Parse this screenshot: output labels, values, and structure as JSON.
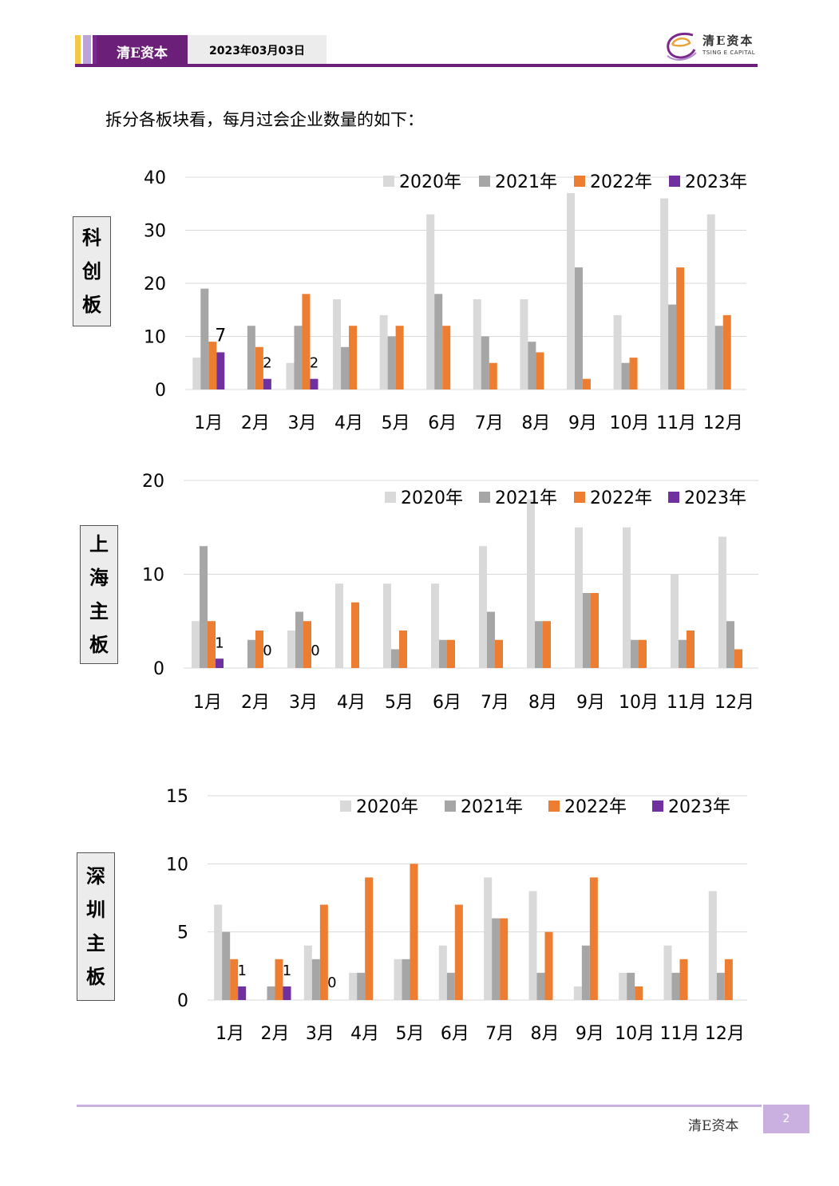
{
  "header": {
    "brand": "清E资本",
    "date": "2023年03月03日"
  },
  "logo": {
    "text_cn": "清E资本",
    "text_en": "TSING E CAPITAL",
    "icon": "swirl-logo-icon"
  },
  "intro": "拆分各板块看，每月过会企业数量的如下：",
  "colors": {
    "2020": "#d9d9d9",
    "2021": "#a6a6a6",
    "2022": "#ed7d31",
    "2023": "#7030a0",
    "brand": "#6b1f78"
  },
  "chart_data": [
    {
      "type": "bar",
      "board": "科创板",
      "categories": [
        "1月",
        "2月",
        "3月",
        "4月",
        "5月",
        "6月",
        "7月",
        "8月",
        "9月",
        "10月",
        "11月",
        "12月"
      ],
      "ylim": [
        0,
        40
      ],
      "yticks": [
        0,
        10,
        20,
        30,
        40
      ],
      "legend": "top-right",
      "grid": true,
      "series": [
        {
          "name": "2020年",
          "values": [
            6,
            0,
            5,
            17,
            14,
            33,
            17,
            17,
            37,
            14,
            36,
            33
          ]
        },
        {
          "name": "2021年",
          "values": [
            19,
            12,
            12,
            8,
            10,
            18,
            10,
            9,
            23,
            5,
            16,
            12
          ]
        },
        {
          "name": "2022年",
          "values": [
            9,
            8,
            18,
            12,
            12,
            12,
            5,
            7,
            2,
            6,
            23,
            14
          ]
        },
        {
          "name": "2023年",
          "values": [
            7,
            2,
            2,
            null,
            null,
            null,
            null,
            null,
            null,
            null,
            null,
            null
          ]
        }
      ],
      "data_labels": [
        "7",
        "2",
        "2"
      ]
    },
    {
      "type": "bar",
      "board": "上海主板",
      "categories": [
        "1月",
        "2月",
        "3月",
        "4月",
        "5月",
        "6月",
        "7月",
        "8月",
        "9月",
        "10月",
        "11月",
        "12月"
      ],
      "ylim": [
        0,
        20
      ],
      "yticks": [
        0,
        10,
        20
      ],
      "legend": "top-right",
      "grid": true,
      "series": [
        {
          "name": "2020年",
          "values": [
            5,
            0,
            4,
            9,
            9,
            9,
            13,
            18,
            15,
            15,
            10,
            14
          ]
        },
        {
          "name": "2021年",
          "values": [
            13,
            3,
            6,
            0,
            2,
            3,
            6,
            5,
            8,
            3,
            3,
            5
          ]
        },
        {
          "name": "2022年",
          "values": [
            5,
            4,
            5,
            7,
            4,
            3,
            3,
            5,
            8,
            3,
            4,
            2
          ]
        },
        {
          "name": "2023年",
          "values": [
            1,
            0,
            0,
            null,
            null,
            null,
            null,
            null,
            null,
            null,
            null,
            null
          ]
        }
      ],
      "data_labels": [
        "1",
        "0",
        "0"
      ]
    },
    {
      "type": "bar",
      "board": "深圳主板",
      "categories": [
        "1月",
        "2月",
        "3月",
        "4月",
        "5月",
        "6月",
        "7月",
        "8月",
        "9月",
        "10月",
        "11月",
        "12月"
      ],
      "ylim": [
        0,
        15
      ],
      "yticks": [
        0,
        5,
        10,
        15
      ],
      "legend": "top-right",
      "grid": true,
      "series": [
        {
          "name": "2020年",
          "values": [
            7,
            0,
            4,
            2,
            3,
            4,
            9,
            8,
            1,
            2,
            4,
            8
          ]
        },
        {
          "name": "2021年",
          "values": [
            5,
            1,
            3,
            2,
            3,
            2,
            6,
            2,
            4,
            2,
            2,
            2
          ]
        },
        {
          "name": "2022年",
          "values": [
            3,
            3,
            7,
            9,
            10,
            7,
            6,
            5,
            9,
            1,
            3,
            3
          ]
        },
        {
          "name": "2023年",
          "values": [
            1,
            1,
            0,
            null,
            null,
            null,
            null,
            null,
            null,
            null,
            null,
            null
          ]
        }
      ],
      "data_labels": [
        "1",
        "1",
        "0"
      ]
    }
  ],
  "footer": {
    "brand": "清E资本",
    "page": "2"
  }
}
